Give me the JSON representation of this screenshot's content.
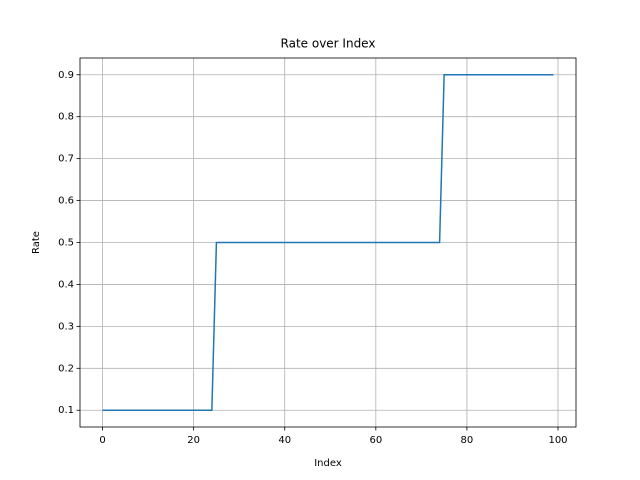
{
  "chart_data": {
    "type": "line",
    "title": "Rate over Index",
    "xlabel": "Index",
    "ylabel": "Rate",
    "x": [
      0,
      1,
      2,
      3,
      4,
      5,
      6,
      7,
      8,
      9,
      10,
      11,
      12,
      13,
      14,
      15,
      16,
      17,
      18,
      19,
      20,
      21,
      22,
      23,
      24,
      25,
      26,
      27,
      28,
      29,
      30,
      31,
      32,
      33,
      34,
      35,
      36,
      37,
      38,
      39,
      40,
      41,
      42,
      43,
      44,
      45,
      46,
      47,
      48,
      49,
      50,
      51,
      52,
      53,
      54,
      55,
      56,
      57,
      58,
      59,
      60,
      61,
      62,
      63,
      64,
      65,
      66,
      67,
      68,
      69,
      70,
      71,
      72,
      73,
      74,
      75,
      76,
      77,
      78,
      79,
      80,
      81,
      82,
      83,
      84,
      85,
      86,
      87,
      88,
      89,
      90,
      91,
      92,
      93,
      94,
      95,
      96,
      97,
      98,
      99
    ],
    "series": [
      {
        "name": "Rate",
        "color": "#1f77b4",
        "values": [
          0.1,
          0.1,
          0.1,
          0.1,
          0.1,
          0.1,
          0.1,
          0.1,
          0.1,
          0.1,
          0.1,
          0.1,
          0.1,
          0.1,
          0.1,
          0.1,
          0.1,
          0.1,
          0.1,
          0.1,
          0.1,
          0.1,
          0.1,
          0.1,
          0.1,
          0.5,
          0.5,
          0.5,
          0.5,
          0.5,
          0.5,
          0.5,
          0.5,
          0.5,
          0.5,
          0.5,
          0.5,
          0.5,
          0.5,
          0.5,
          0.5,
          0.5,
          0.5,
          0.5,
          0.5,
          0.5,
          0.5,
          0.5,
          0.5,
          0.5,
          0.5,
          0.5,
          0.5,
          0.5,
          0.5,
          0.5,
          0.5,
          0.5,
          0.5,
          0.5,
          0.5,
          0.5,
          0.5,
          0.5,
          0.5,
          0.5,
          0.5,
          0.5,
          0.5,
          0.5,
          0.5,
          0.5,
          0.5,
          0.5,
          0.5,
          0.9,
          0.9,
          0.9,
          0.9,
          0.9,
          0.9,
          0.9,
          0.9,
          0.9,
          0.9,
          0.9,
          0.9,
          0.9,
          0.9,
          0.9,
          0.9,
          0.9,
          0.9,
          0.9,
          0.9,
          0.9,
          0.9,
          0.9,
          0.9,
          0.9
        ]
      }
    ],
    "xlim": [
      -4.95,
      103.95
    ],
    "xticks": [
      0,
      20,
      40,
      60,
      80,
      100
    ],
    "ylim": [
      0.06,
      0.94
    ],
    "yticks": [
      0.1,
      0.2,
      0.3,
      0.4,
      0.5,
      0.6,
      0.7,
      0.8,
      0.9
    ],
    "grid": true
  }
}
